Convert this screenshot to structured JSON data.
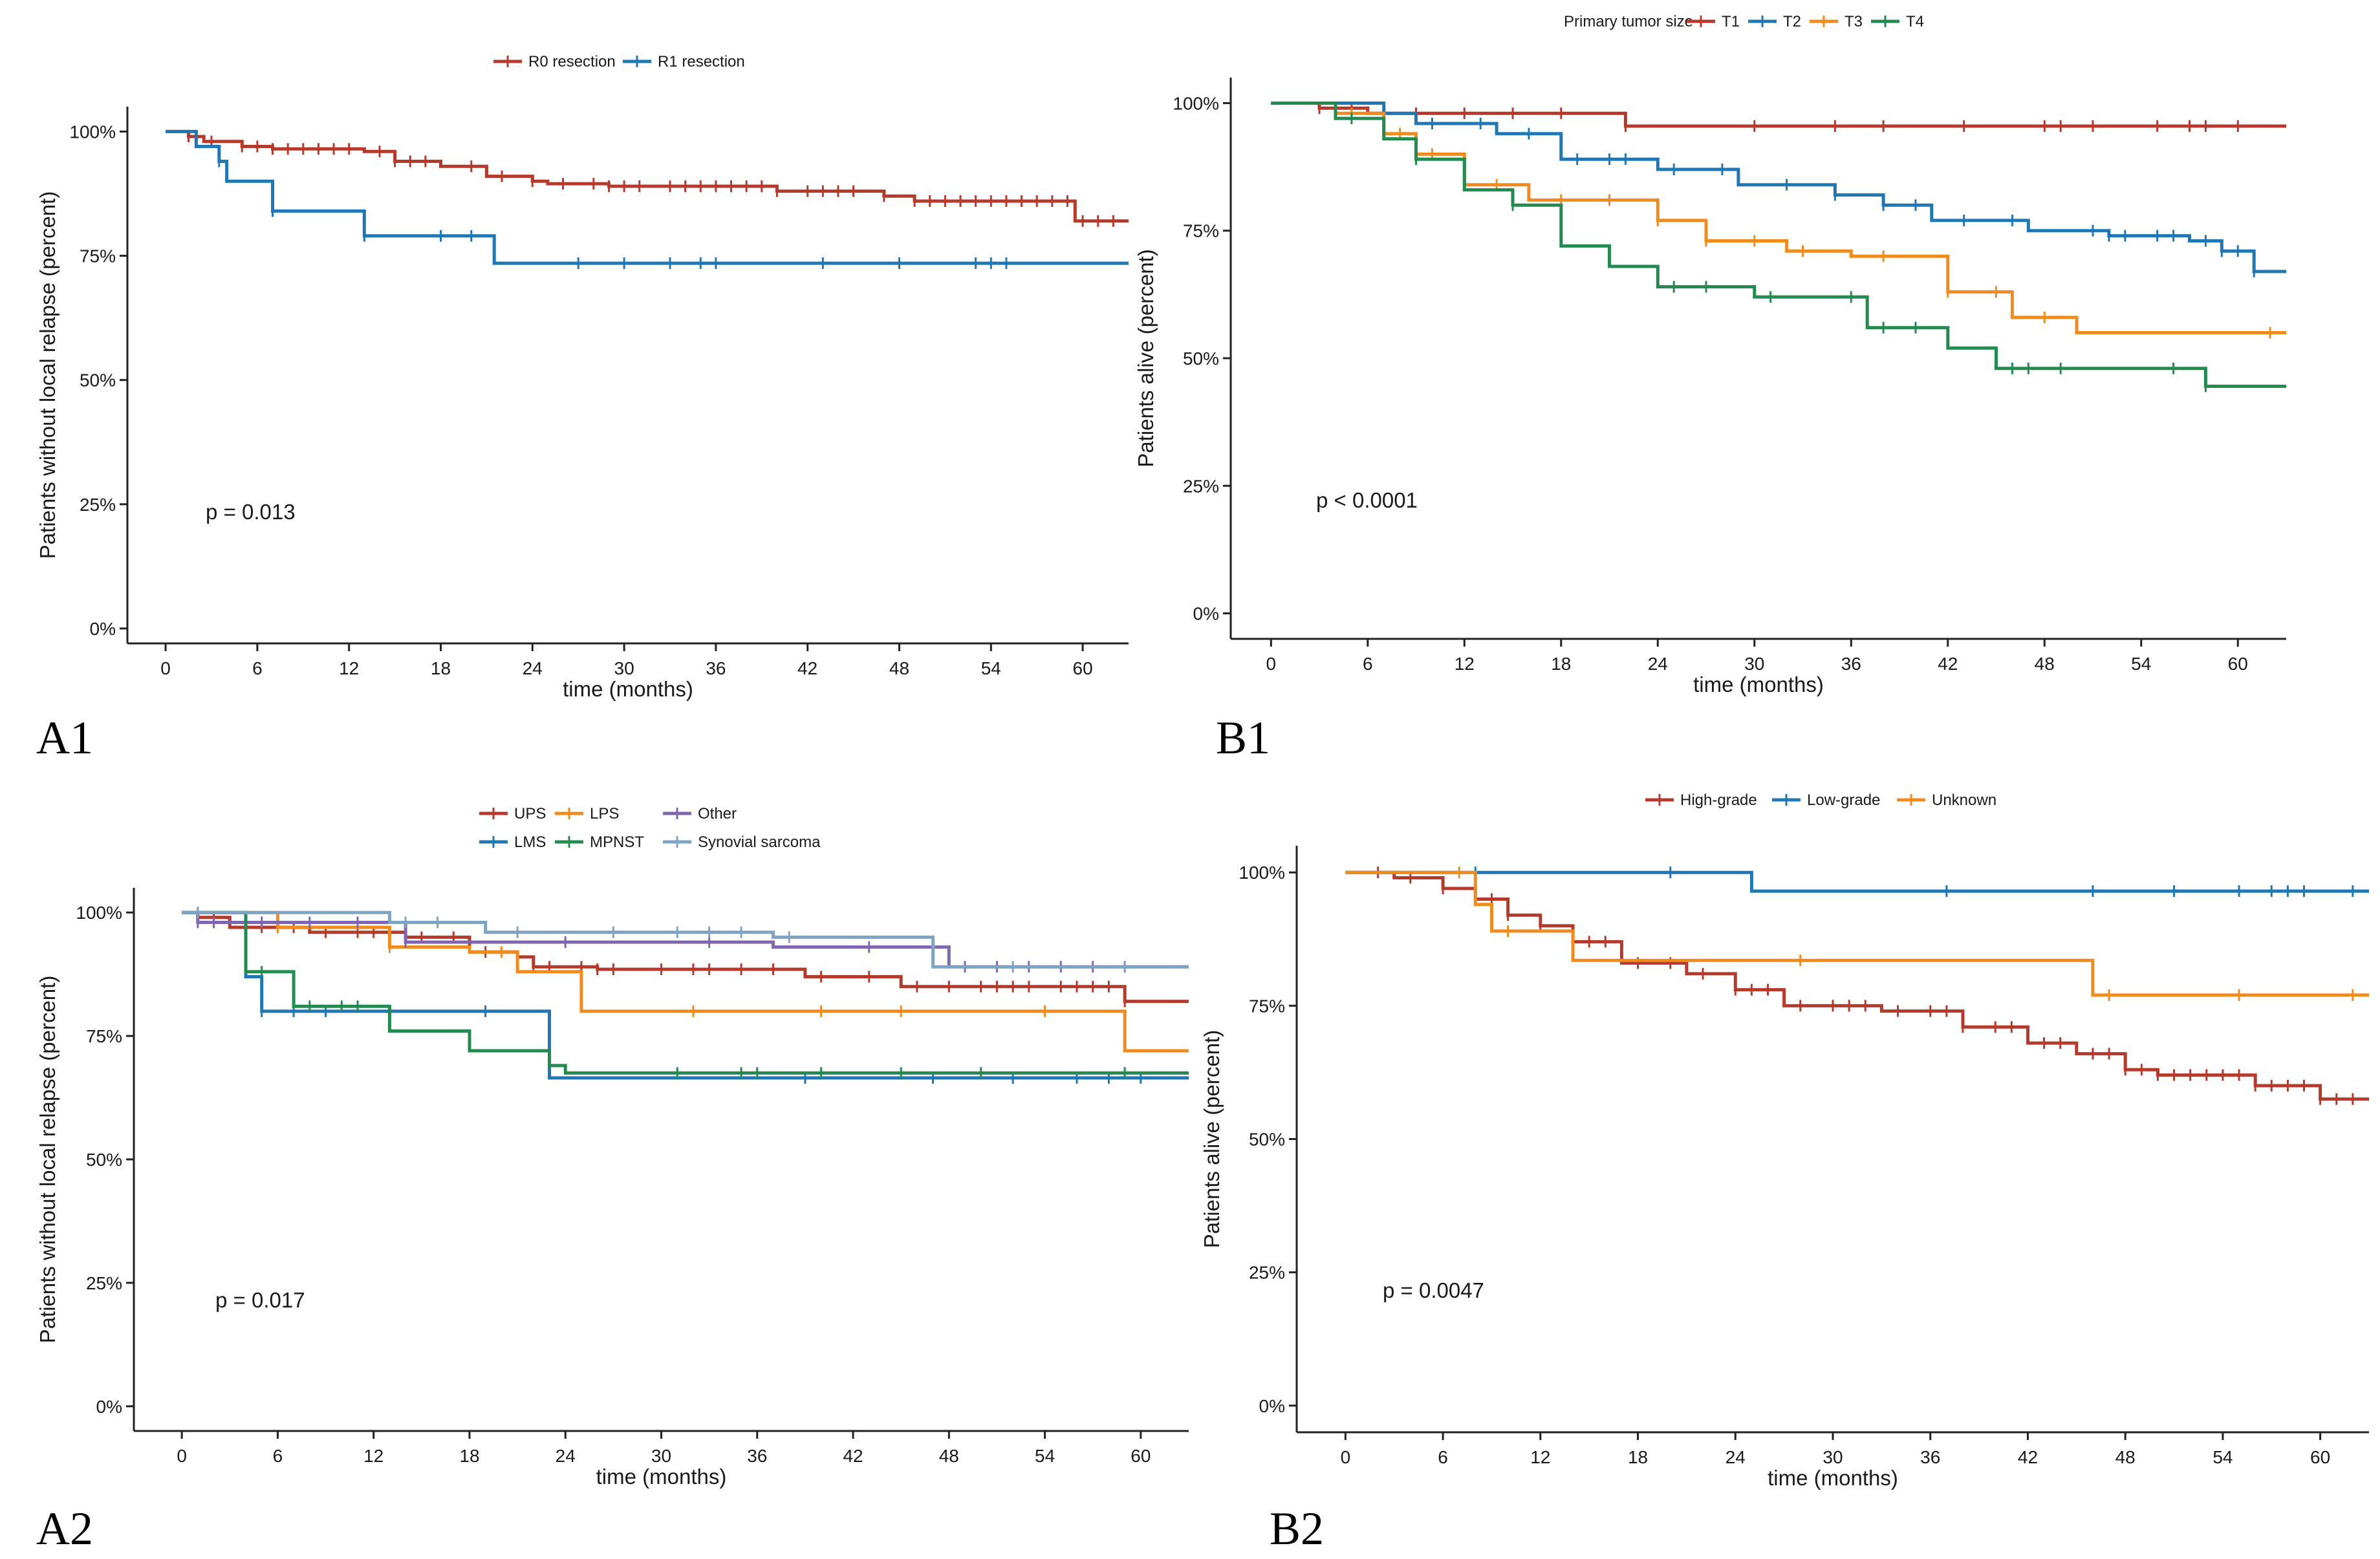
{
  "colors": {
    "red": "#b53a2c",
    "blue": "#1f77b4",
    "orange": "#f08c1e",
    "green": "#238b4f",
    "purple": "#7e66b0",
    "gray_blue": "#7ea3c3"
  },
  "chart_data": [
    {
      "id": "A1",
      "panel_label": "A1",
      "type": "line",
      "subtype": "kaplan-meier",
      "xlabel": "time (months)",
      "ylabel": "Patients without local relapse (percent)",
      "xlim": [
        -2.5,
        63
      ],
      "ylim": [
        -3,
        105
      ],
      "xticks": [
        0,
        6,
        12,
        18,
        24,
        30,
        36,
        42,
        48,
        54,
        60
      ],
      "yticks": [
        0,
        25,
        50,
        75,
        100
      ],
      "ytick_labels": [
        "0%",
        "25%",
        "50%",
        "75%",
        "100%"
      ],
      "pvalue": "p = 0.013",
      "legend_title": "",
      "legend_position": "top-center",
      "series": [
        {
          "name": "R0 resection",
          "color": "red",
          "x": [
            0,
            1.5,
            2.5,
            5,
            7,
            13,
            15,
            18,
            21,
            24,
            25,
            29,
            40,
            47,
            49,
            59.5,
            63
          ],
          "y": [
            100,
            99,
            98,
            97,
            96.5,
            96,
            94,
            93,
            91,
            90,
            89.5,
            89,
            88,
            87,
            86,
            82,
            82
          ],
          "censor": [
            1.5,
            2,
            3,
            5,
            6,
            7,
            8,
            9,
            10,
            11,
            12,
            14,
            15,
            16,
            17,
            20,
            22,
            24,
            26,
            28,
            29,
            30,
            31,
            33,
            34,
            35,
            36,
            37,
            38,
            39,
            40,
            42,
            43,
            44,
            45,
            47,
            49,
            50,
            51,
            52,
            53,
            54,
            55,
            56,
            57,
            58,
            59,
            60,
            61,
            62
          ]
        },
        {
          "name": "R1 resection",
          "color": "blue",
          "x": [
            0,
            2,
            3.5,
            4,
            7,
            13,
            21.5,
            63
          ],
          "y": [
            100,
            97,
            94,
            90,
            84,
            79,
            73.5,
            73.5
          ],
          "censor": [
            3.5,
            7,
            13,
            18,
            20,
            27,
            30,
            33,
            35,
            36,
            43,
            48,
            53,
            54,
            55
          ]
        }
      ]
    },
    {
      "id": "B1",
      "panel_label": "B1",
      "type": "line",
      "subtype": "kaplan-meier",
      "xlabel": "time (months)",
      "ylabel": "Patients alive (percent)",
      "xlim": [
        -2.5,
        63
      ],
      "ylim": [
        -5,
        105
      ],
      "xticks": [
        0,
        6,
        12,
        18,
        24,
        30,
        36,
        42,
        48,
        54,
        60
      ],
      "yticks": [
        0,
        25,
        50,
        75,
        100
      ],
      "ytick_labels": [
        "0%",
        "25%",
        "50%",
        "75%",
        "100%"
      ],
      "pvalue": "p < 0.0001",
      "legend_title": "Primary tumor size",
      "legend_position": "top-center",
      "series": [
        {
          "name": "T1",
          "color": "red",
          "x": [
            0,
            3,
            6,
            22,
            63
          ],
          "y": [
            100,
            99,
            98,
            95.5,
            95.5
          ],
          "censor": [
            3,
            4,
            5,
            7,
            9,
            12,
            15,
            18,
            22,
            30,
            35,
            38,
            43,
            48,
            49,
            51,
            55,
            57,
            58,
            60
          ]
        },
        {
          "name": "T2",
          "color": "blue",
          "x": [
            0,
            7,
            9,
            14,
            18,
            24,
            29,
            35,
            38,
            41,
            47,
            52,
            57,
            59,
            61,
            63
          ],
          "y": [
            100,
            98,
            96,
            94,
            89,
            87,
            84,
            82,
            80,
            77,
            75,
            74,
            73,
            71,
            67,
            67
          ],
          "censor": [
            7,
            10,
            13,
            16,
            19,
            21,
            22,
            25,
            28,
            32,
            35,
            38,
            40,
            43,
            46,
            51,
            52,
            53,
            55,
            56,
            58,
            59,
            60,
            61
          ]
        },
        {
          "name": "T3",
          "color": "orange",
          "x": [
            0,
            4,
            7,
            9,
            12,
            16,
            24,
            27,
            32,
            36,
            42,
            46,
            50,
            63
          ],
          "y": [
            100,
            98,
            94,
            90,
            84,
            81,
            77,
            73,
            71,
            70,
            63,
            58,
            55,
            55
          ],
          "censor": [
            5,
            8,
            10,
            14,
            18,
            21,
            24,
            27,
            30,
            33,
            38,
            42,
            45,
            48,
            62
          ]
        },
        {
          "name": "T4",
          "color": "green",
          "x": [
            0,
            4,
            7,
            9,
            12,
            15,
            18,
            21,
            24,
            30,
            37,
            42,
            45,
            58,
            63
          ],
          "y": [
            100,
            97,
            93,
            89,
            83,
            80,
            72,
            68,
            64,
            62,
            56,
            52,
            48,
            44.5,
            44.5
          ],
          "censor": [
            5,
            9,
            15,
            25,
            27,
            31,
            36,
            38,
            40,
            46,
            47,
            49,
            56,
            58
          ]
        }
      ]
    },
    {
      "id": "A2",
      "panel_label": "A2",
      "type": "line",
      "subtype": "kaplan-meier",
      "xlabel": "time (months)",
      "ylabel": "Patients without local relapse (percent)",
      "xlim": [
        -3,
        63
      ],
      "ylim": [
        -5,
        105
      ],
      "xticks": [
        0,
        6,
        12,
        18,
        24,
        30,
        36,
        42,
        48,
        54,
        60
      ],
      "yticks": [
        0,
        25,
        50,
        75,
        100
      ],
      "ytick_labels": [
        "0%",
        "25%",
        "50%",
        "75%",
        "100%"
      ],
      "pvalue": "p = 0.017",
      "legend_title": "",
      "legend_position": "top-center",
      "series": [
        {
          "name": "UPS",
          "color": "red",
          "x": [
            0,
            1,
            3,
            8,
            14,
            18,
            21,
            22,
            26,
            39,
            45,
            59,
            63
          ],
          "y": [
            100,
            99,
            97,
            96,
            95,
            92,
            91,
            89,
            88.5,
            87,
            85,
            82,
            82
          ],
          "censor": [
            2,
            4,
            5,
            7,
            9,
            11,
            12,
            13,
            15,
            17,
            19,
            22,
            23,
            25,
            26,
            27,
            30,
            32,
            33,
            35,
            37,
            40,
            43,
            46,
            48,
            50,
            51,
            52,
            53,
            55,
            56,
            57,
            58,
            59
          ]
        },
        {
          "name": "LPS",
          "color": "orange",
          "x": [
            0,
            6,
            13,
            18,
            21,
            25,
            59,
            63
          ],
          "y": [
            100,
            97,
            93,
            92,
            88,
            80,
            72,
            72
          ],
          "censor": [
            1,
            6,
            13,
            20,
            32,
            40,
            45,
            54
          ]
        },
        {
          "name": "Other",
          "color": "purple",
          "x": [
            0,
            1,
            14,
            37,
            48,
            63
          ],
          "y": [
            100,
            98,
            94,
            93,
            89,
            89
          ],
          "censor": [
            1,
            2,
            5,
            8,
            11,
            14,
            24,
            33,
            43,
            49,
            51,
            53,
            55,
            57,
            59
          ]
        },
        {
          "name": "LMS",
          "color": "blue",
          "x": [
            0,
            4,
            5,
            23,
            63
          ],
          "y": [
            100,
            87,
            80,
            66.5,
            66.5
          ],
          "censor": [
            5,
            7,
            9,
            19,
            39,
            47,
            52,
            56,
            58,
            60
          ]
        },
        {
          "name": "MPNST",
          "color": "green",
          "x": [
            0,
            4,
            7,
            13,
            18,
            23,
            24,
            63
          ],
          "y": [
            100,
            88,
            81,
            76,
            72,
            69,
            67.5,
            67.5
          ],
          "censor": [
            5,
            8,
            10,
            11,
            31,
            35,
            36,
            40,
            45,
            50,
            59
          ]
        },
        {
          "name": "Synovial sarcoma",
          "color": "gray_blue",
          "x": [
            0,
            13,
            19,
            37,
            47,
            63
          ],
          "y": [
            100,
            98,
            96,
            95,
            89,
            89
          ],
          "censor": [
            1,
            14,
            16,
            21,
            27,
            31,
            33,
            35,
            38,
            52,
            59
          ]
        }
      ]
    },
    {
      "id": "B2",
      "panel_label": "B2",
      "type": "line",
      "subtype": "kaplan-meier",
      "xlabel": "time (months)",
      "ylabel": "Patients alive (percent)",
      "xlim": [
        -3,
        63
      ],
      "ylim": [
        -5,
        105
      ],
      "xticks": [
        0,
        6,
        12,
        18,
        24,
        30,
        36,
        42,
        48,
        54,
        60
      ],
      "yticks": [
        0,
        25,
        50,
        75,
        100
      ],
      "ytick_labels": [
        "0%",
        "25%",
        "50%",
        "75%",
        "100%"
      ],
      "pvalue": "p = 0.0047",
      "legend_title": "",
      "legend_position": "top-center",
      "series": [
        {
          "name": "High-grade",
          "color": "red",
          "x": [
            0,
            3,
            6,
            8,
            10,
            12,
            14,
            17,
            21,
            24,
            27,
            33,
            38,
            42,
            45,
            48,
            50,
            56,
            60,
            63
          ],
          "y": [
            100,
            99,
            97,
            95,
            92,
            90,
            87,
            83,
            81,
            78,
            75,
            74,
            71,
            68,
            66,
            63,
            62,
            60,
            57.5,
            57.5
          ],
          "censor": [
            2,
            4,
            6,
            8,
            9,
            10,
            12,
            14,
            15,
            16,
            18,
            20,
            22,
            24,
            25,
            26,
            28,
            30,
            31,
            32,
            34,
            36,
            37,
            38,
            40,
            41,
            43,
            44,
            46,
            47,
            48,
            49,
            50,
            51,
            52,
            53,
            54,
            55,
            56,
            57,
            58,
            59,
            60,
            61,
            62
          ]
        },
        {
          "name": "Low-grade",
          "color": "blue",
          "x": [
            0,
            25,
            63
          ],
          "y": [
            100,
            96.5,
            96.5
          ],
          "censor": [
            8,
            20,
            37,
            46,
            51,
            55,
            57,
            58,
            59,
            62
          ]
        },
        {
          "name": "Unknown",
          "color": "orange",
          "x": [
            0,
            8,
            9,
            14,
            46,
            63
          ],
          "y": [
            100,
            94,
            89,
            83.5,
            77,
            77
          ],
          "censor": [
            7,
            10,
            28,
            47,
            55,
            62
          ]
        }
      ]
    }
  ]
}
